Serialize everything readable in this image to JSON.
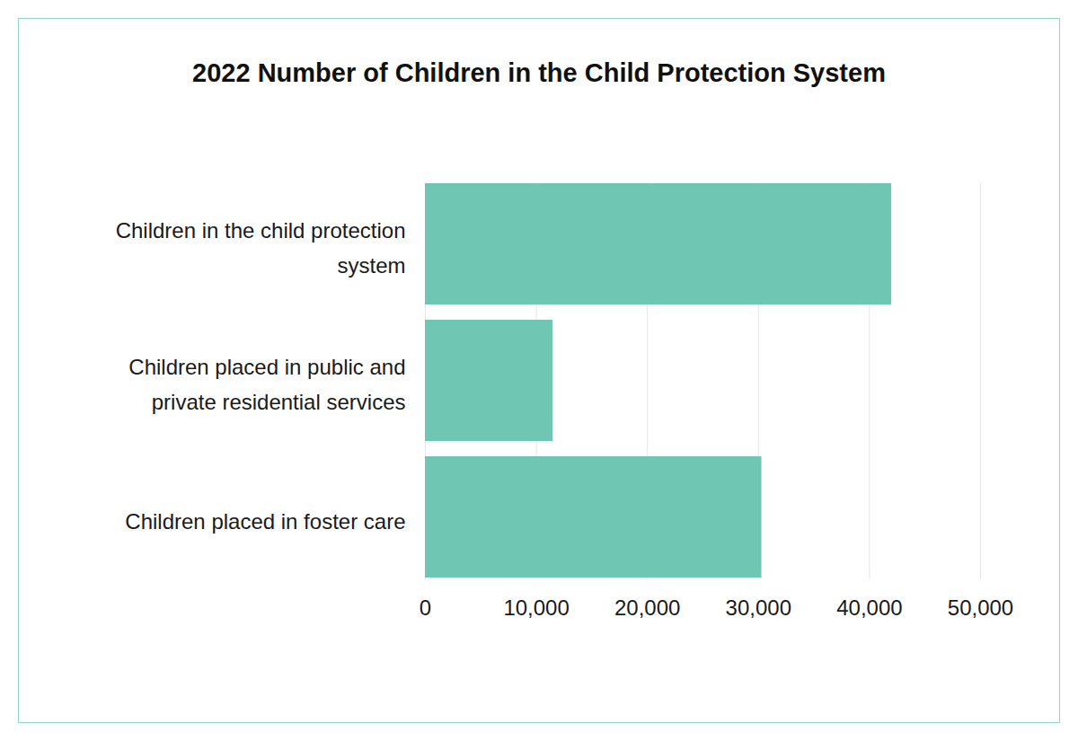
{
  "chart_data": {
    "type": "bar",
    "orientation": "horizontal",
    "title": "2022 Number of Children in the Child Protection System",
    "categories": [
      "Children in the child protection system",
      "Children placed in public and private residential services",
      "Children placed in foster care"
    ],
    "values": [
      42000,
      11500,
      30300
    ],
    "color": "#6fc7b3",
    "xlim": [
      0,
      50000
    ],
    "xticks": [
      0,
      {
        "value": 10000,
        "label": "10,000"
      },
      {
        "value": 20000,
        "label": "20,000"
      },
      {
        "value": 30000,
        "label": "30,000"
      },
      {
        "value": 40000,
        "label": "40,000"
      },
      {
        "value": 50000,
        "label": "50,000"
      }
    ],
    "grid": true
  }
}
